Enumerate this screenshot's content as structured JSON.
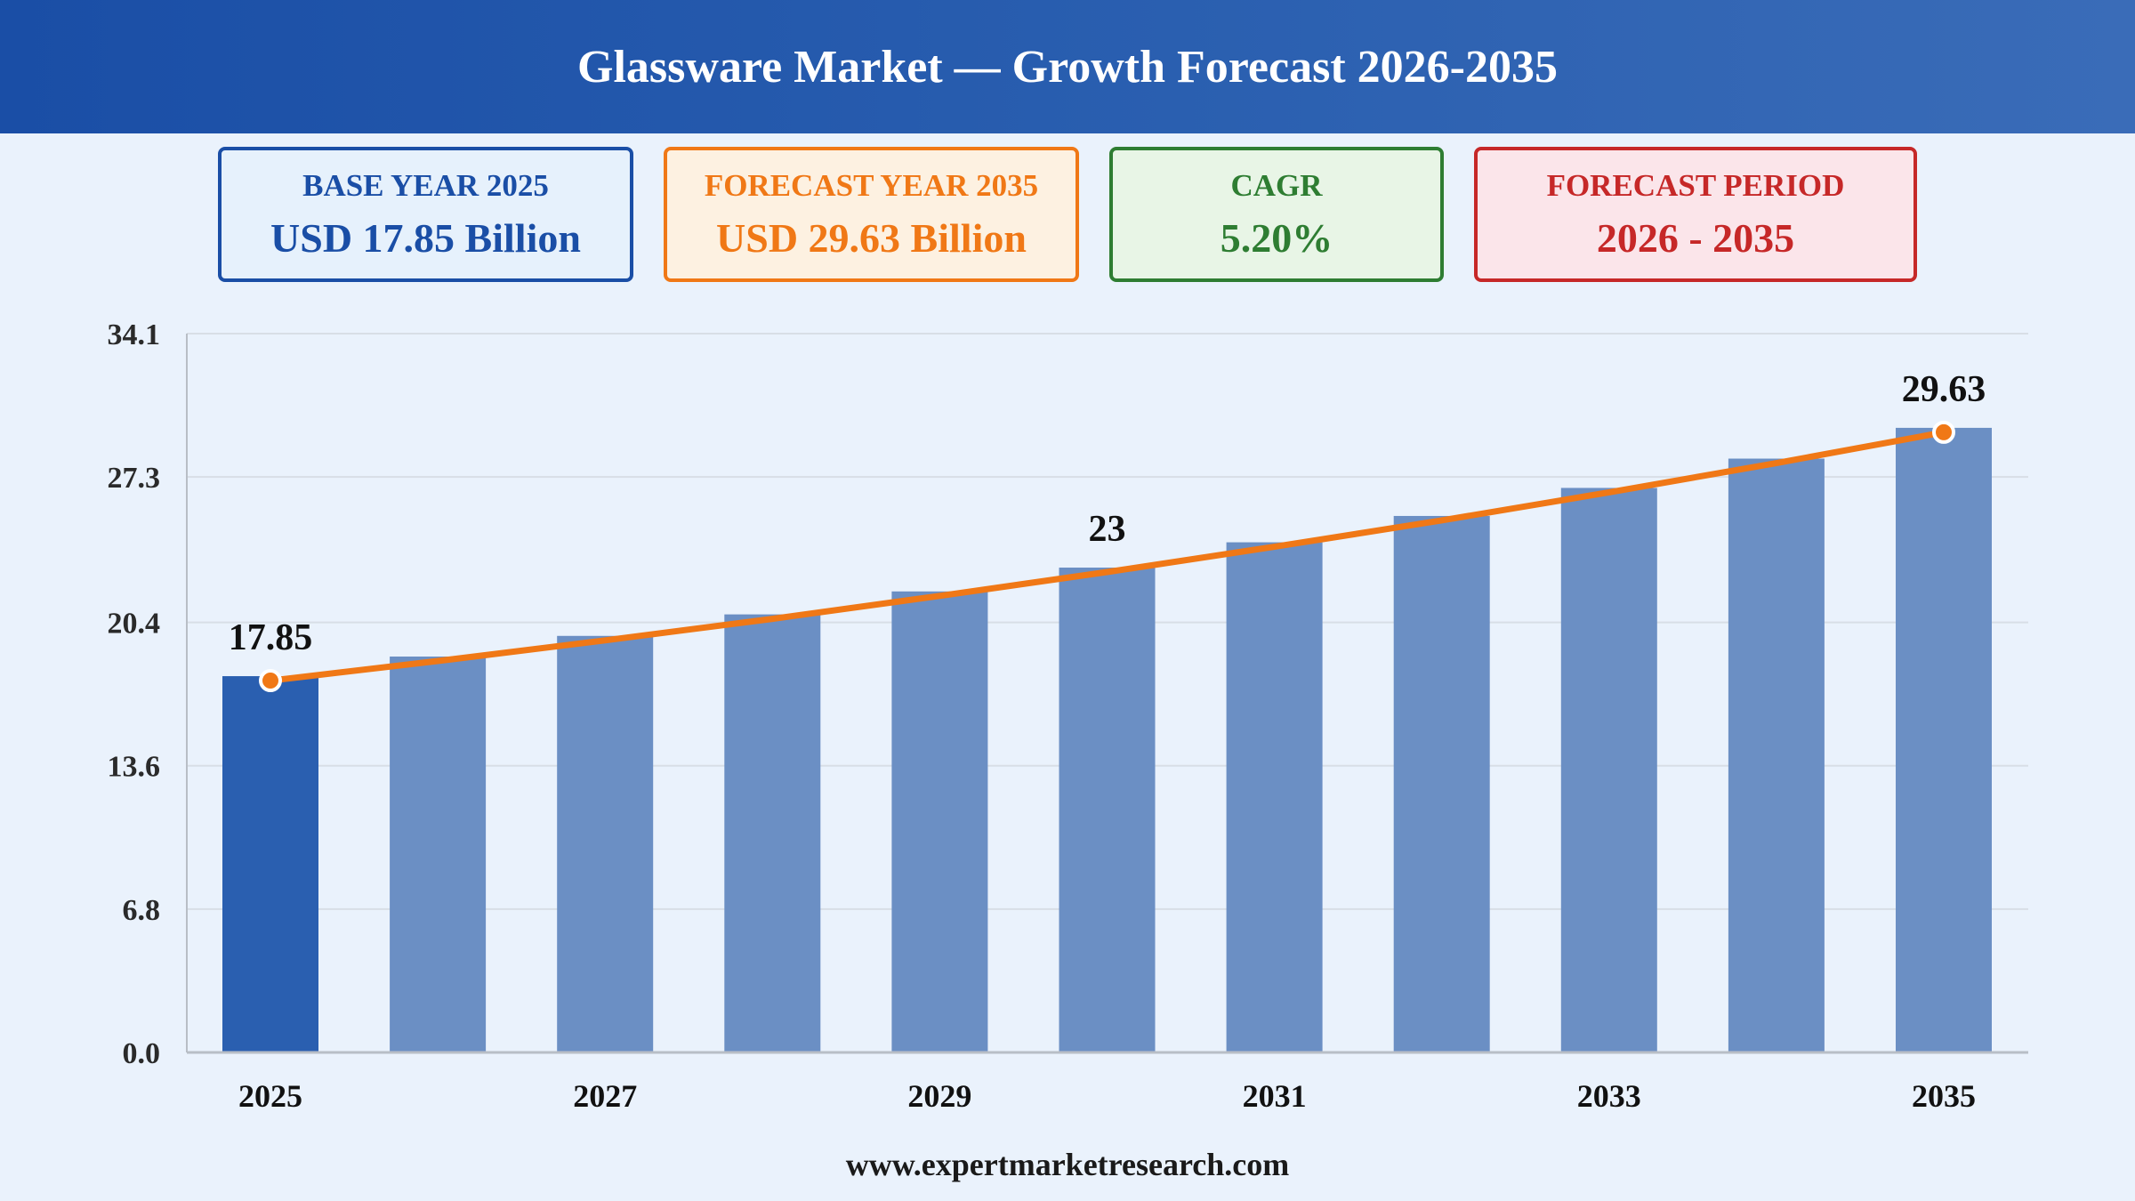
{
  "header": {
    "title": "Glassware Market — Growth Forecast 2026-2035"
  },
  "cards": {
    "base": {
      "label": "BASE YEAR 2025",
      "value": "USD 17.85 Billion"
    },
    "forecast": {
      "label": "FORECAST YEAR 2035",
      "value": "USD 29.63 Billion"
    },
    "cagr": {
      "label": "CAGR",
      "value": "5.20%"
    },
    "period": {
      "label": "FORECAST PERIOD",
      "value": "2026 - 2035"
    }
  },
  "footer": {
    "source": "www.expertmarketresearch.com"
  },
  "chart_data": {
    "type": "bar",
    "title": "",
    "xlabel": "",
    "ylabel": "",
    "categories": [
      "2025",
      "2026",
      "2027",
      "2028",
      "2029",
      "2030",
      "2031",
      "2032",
      "2033",
      "2034",
      "2035"
    ],
    "x_tick_labels": [
      "2025",
      "2027",
      "2029",
      "2031",
      "2033",
      "2035"
    ],
    "values": [
      17.85,
      18.78,
      19.76,
      20.78,
      21.87,
      23.0,
      24.2,
      25.45,
      26.78,
      28.17,
      29.63
    ],
    "trend_line": [
      17.85,
      18.78,
      19.76,
      20.78,
      21.87,
      23.0,
      24.2,
      25.45,
      26.78,
      28.17,
      29.63
    ],
    "data_labels": [
      {
        "index": 0,
        "text": "17.85"
      },
      {
        "index": 5,
        "text": "23"
      },
      {
        "index": 10,
        "text": "29.63"
      }
    ],
    "y_ticks": [
      "0.0",
      "6.8",
      "13.6",
      "20.4",
      "27.3",
      "34.1"
    ],
    "ylim": [
      0,
      34.1
    ],
    "grid": true,
    "legend": "none",
    "colors": {
      "highlight_bar": "#2a5fb0",
      "bar": "#6b8fc4",
      "line": "#f07816",
      "marker_stroke": "#ffffff",
      "grid": "#d8dee6",
      "axis": "#b8bec6"
    }
  }
}
